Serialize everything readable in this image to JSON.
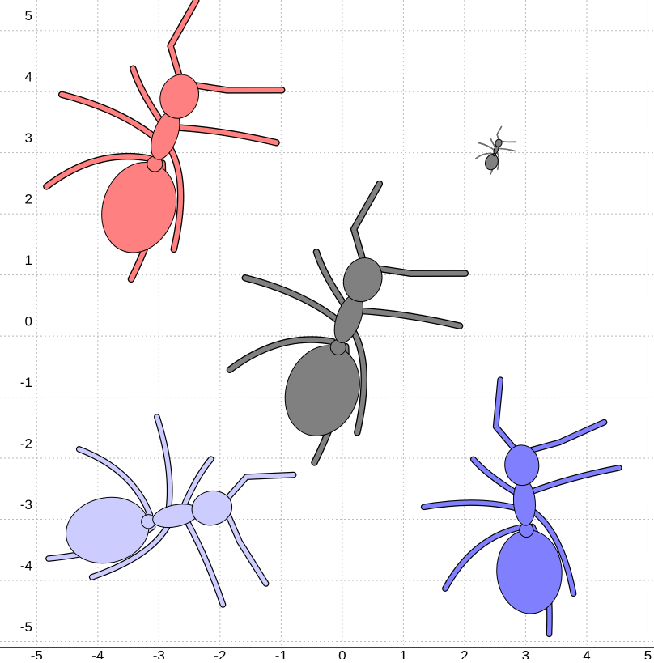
{
  "chart_data": {
    "type": "ants",
    "xlim": [
      -5.6,
      5.1
    ],
    "ylim": [
      -5.1,
      5.5
    ],
    "xticks": [
      -5,
      -4,
      -3,
      -2,
      -1,
      0,
      1,
      2,
      3,
      4,
      5
    ],
    "yticks": [
      -5,
      -4,
      -3,
      -2,
      -1,
      0,
      1,
      2,
      3,
      4,
      5
    ],
    "grid": true,
    "ants": [
      {
        "x": -3,
        "y": 3,
        "size": 1.05,
        "rotation": 20,
        "color": "#ff8080"
      },
      {
        "x": 0,
        "y": 0,
        "size": 1.05,
        "rotation": 20,
        "color": "#808080"
      },
      {
        "x": 2.5,
        "y": 3,
        "size": 0.18,
        "rotation": 20,
        "color": "#808080"
      },
      {
        "x": 3,
        "y": -3,
        "size": 0.95,
        "rotation": -4,
        "color": "#8080ff"
      },
      {
        "x": -3,
        "y": -3,
        "size": 0.95,
        "rotation": 78,
        "color": "#ccccff"
      }
    ]
  }
}
